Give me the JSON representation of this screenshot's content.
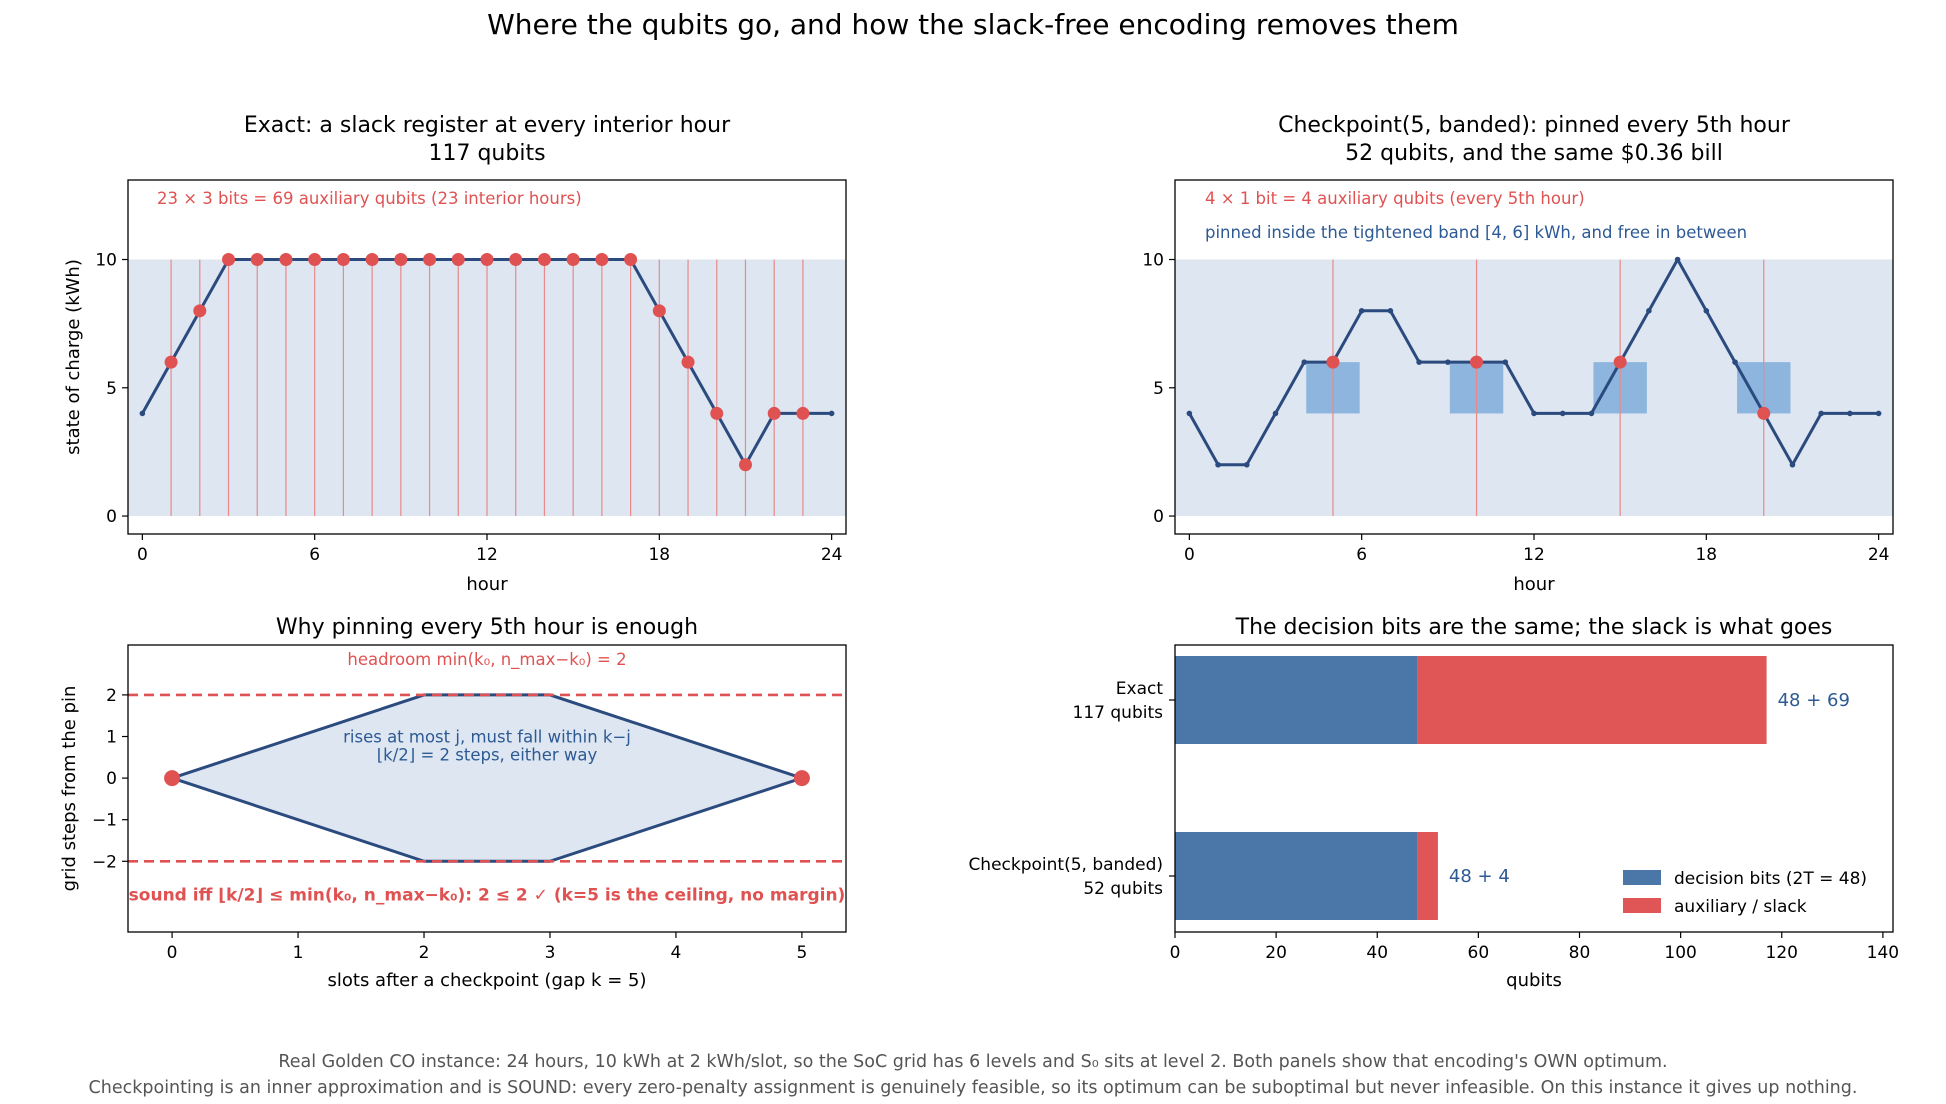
{
  "suptitle": "Where the qubits go, and how the slack-free encoding removes them",
  "colors": {
    "line": "#2b4a7e",
    "dot": "#e05252",
    "vline": "#e88a8a",
    "band": "#dde6f1",
    "box": "#8db5de",
    "decision": "#4a77a8",
    "slack": "#e05656",
    "annotation_blue": "#2d5a94"
  },
  "footer": {
    "line1": "Real Golden CO instance: 24 hours, 10 kWh at 2 kWh/slot, so the SoC grid has 6 levels and S₀ sits at level 2. Both panels show that encoding's OWN optimum.",
    "line2": "Checkpointing is an inner approximation and is SOUND: every zero-penalty assignment is genuinely feasible, so its optimum can be suboptimal but never infeasible. On this instance it gives up nothing."
  },
  "chart_data": [
    {
      "id": "exact",
      "type": "line",
      "title": "Exact: a slack register at every interior hour",
      "subtitle": "117 qubits",
      "xlabel": "hour",
      "ylabel": "state of charge (kWh)",
      "xlim": [
        -0.5,
        24.5
      ],
      "ylim": [
        -0.7,
        13.1
      ],
      "xticks": [
        0,
        6,
        12,
        18,
        24
      ],
      "yticks": [
        0,
        5,
        10
      ],
      "band": [
        0,
        10
      ],
      "x": [
        0,
        1,
        2,
        3,
        4,
        5,
        6,
        7,
        8,
        9,
        10,
        11,
        12,
        13,
        14,
        15,
        16,
        17,
        18,
        19,
        20,
        21,
        22,
        23,
        24
      ],
      "y": [
        4,
        6,
        8,
        10,
        10,
        10,
        10,
        10,
        10,
        10,
        10,
        10,
        10,
        10,
        10,
        10,
        10,
        10,
        8,
        6,
        4,
        2,
        4,
        4,
        4
      ],
      "marked_hours": [
        1,
        2,
        3,
        4,
        5,
        6,
        7,
        8,
        9,
        10,
        11,
        12,
        13,
        14,
        15,
        16,
        17,
        18,
        19,
        20,
        21,
        22,
        23
      ],
      "annotations": [
        "23 × 3 bits = 69 auxiliary qubits   (23 interior hours)"
      ]
    },
    {
      "id": "checkpoint",
      "type": "line",
      "title": "Checkpoint(5, banded): pinned every 5th hour",
      "subtitle": "52 qubits, and the same $0.36 bill",
      "xlabel": "hour",
      "ylabel": "",
      "xlim": [
        -0.5,
        24.5
      ],
      "ylim": [
        -0.7,
        13.1
      ],
      "xticks": [
        0,
        6,
        12,
        18,
        24
      ],
      "yticks": [
        0,
        5,
        10
      ],
      "band": [
        0,
        10
      ],
      "pin_band": [
        4,
        6
      ],
      "x": [
        0,
        1,
        2,
        3,
        4,
        5,
        6,
        7,
        8,
        9,
        10,
        11,
        12,
        13,
        14,
        15,
        16,
        17,
        18,
        19,
        20,
        21,
        22,
        23,
        24
      ],
      "y": [
        4,
        2,
        2,
        4,
        6,
        6,
        8,
        8,
        6,
        6,
        6,
        6,
        4,
        4,
        4,
        6,
        8,
        10,
        8,
        6,
        4,
        2,
        4,
        4,
        4
      ],
      "marked_hours": [
        5,
        10,
        15,
        20
      ],
      "annotations": [
        "4 × 1 bit = 4 auxiliary qubits   (every 5th hour)",
        "pinned inside the tightened band [4, 6] kWh, and free in between"
      ]
    },
    {
      "id": "envelope",
      "type": "line",
      "title": "Why pinning every 5th hour is enough",
      "xlabel": "slots after a checkpoint  (gap k = 5)",
      "ylabel": "grid steps from the pin",
      "xlim": [
        -0.35,
        5.35
      ],
      "ylim": [
        -3.7,
        3.2
      ],
      "xticks": [
        0,
        1,
        2,
        3,
        4,
        5
      ],
      "yticks": [
        -2,
        -1,
        0,
        1,
        2
      ],
      "envelope_upper": {
        "x": [
          0,
          2,
          3,
          5
        ],
        "y": [
          0,
          2,
          2,
          0
        ]
      },
      "envelope_lower": {
        "x": [
          0,
          2,
          3,
          5
        ],
        "y": [
          0,
          -2,
          -2,
          0
        ]
      },
      "limits": [
        2,
        -2
      ],
      "pins": {
        "x": [
          0,
          5
        ],
        "y": [
          0,
          0
        ]
      },
      "annotations": [
        "headroom min(k₀, n_max−k₀) = 2",
        "rises at most j, must fall within k−j",
        "⌊k/2⌋ = 2 steps, either way",
        "sound iff ⌊k/2⌋ ≤ min(k₀, n_max−k₀):  2 ≤ 2 ✓   (k=5 is the ceiling, no margin)"
      ]
    },
    {
      "id": "qubits",
      "type": "bar",
      "orientation": "horizontal",
      "stacked": true,
      "title": "The decision bits are the same; the slack is what goes",
      "xlabel": "qubits",
      "xlim": [
        0,
        142
      ],
      "xticks": [
        0,
        20,
        40,
        60,
        80,
        100,
        120,
        140
      ],
      "categories": [
        [
          "Exact",
          "117 qubits"
        ],
        [
          "Checkpoint(5, banded)",
          "52 qubits"
        ]
      ],
      "series": [
        {
          "name": "decision bits (2T = 48)",
          "values": [
            48,
            48
          ]
        },
        {
          "name": "auxiliary / slack",
          "values": [
            69,
            4
          ]
        }
      ],
      "bar_labels": [
        "48 + 69",
        "48 + 4"
      ],
      "legend": "lower-right"
    }
  ]
}
